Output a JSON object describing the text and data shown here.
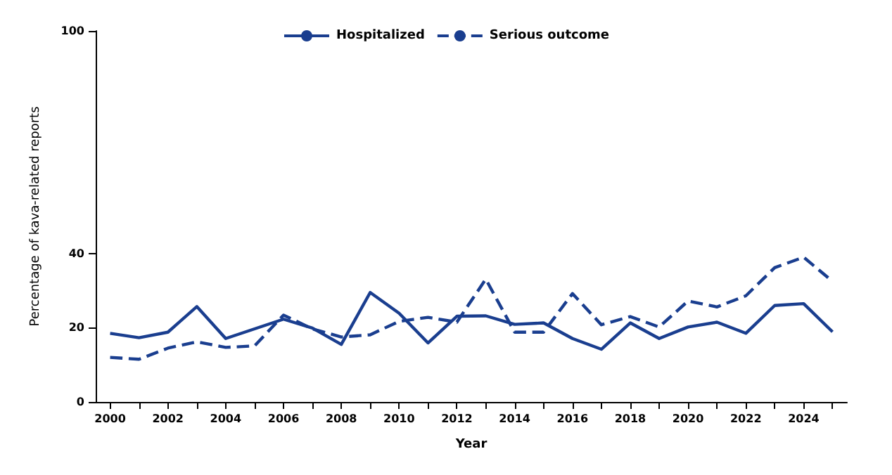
{
  "chart_data": {
    "type": "line",
    "xlabel": "Year",
    "ylabel": "Percentage of kava-related reports",
    "categories": [
      "2000",
      null,
      "2002",
      null,
      "2004",
      null,
      "2006",
      null,
      "2008",
      null,
      "2010",
      null,
      "2012",
      null,
      "2014",
      null,
      "2016",
      null,
      "2018",
      null,
      "2020",
      null,
      "2022",
      null,
      "2024",
      null
    ],
    "series": [
      {
        "name": "Hospitalized",
        "color": "#1a3e8f",
        "line_style": "solid",
        "values": [
          18.5,
          17.3,
          18.8,
          25.7,
          17.1,
          19.7,
          22.3,
          19.9,
          15.5,
          29.5,
          23.9,
          15.9,
          23.1,
          23.2,
          20.9,
          21.3,
          17.1,
          14.2,
          21.3,
          17.1,
          20.2,
          21.5,
          18.5,
          26.0,
          26.5,
          18.9
        ]
      },
      {
        "name": "Serious outcome",
        "color": "#1a3e8f",
        "line_style": "dashed",
        "values": [
          12.0,
          11.5,
          14.5,
          16.2,
          14.7,
          15.1,
          23.4,
          19.7,
          17.5,
          18.1,
          21.7,
          22.8,
          21.5,
          33.1,
          18.8,
          18.8,
          29.2,
          20.8,
          23.0,
          20.2,
          27.2,
          25.6,
          28.6,
          36.2,
          39.0,
          32.5
        ]
      }
    ],
    "ylim": [
      0,
      100
    ],
    "yticks": [
      0,
      20,
      40,
      100
    ],
    "grid": false,
    "legend": "top",
    "marker": "none"
  }
}
